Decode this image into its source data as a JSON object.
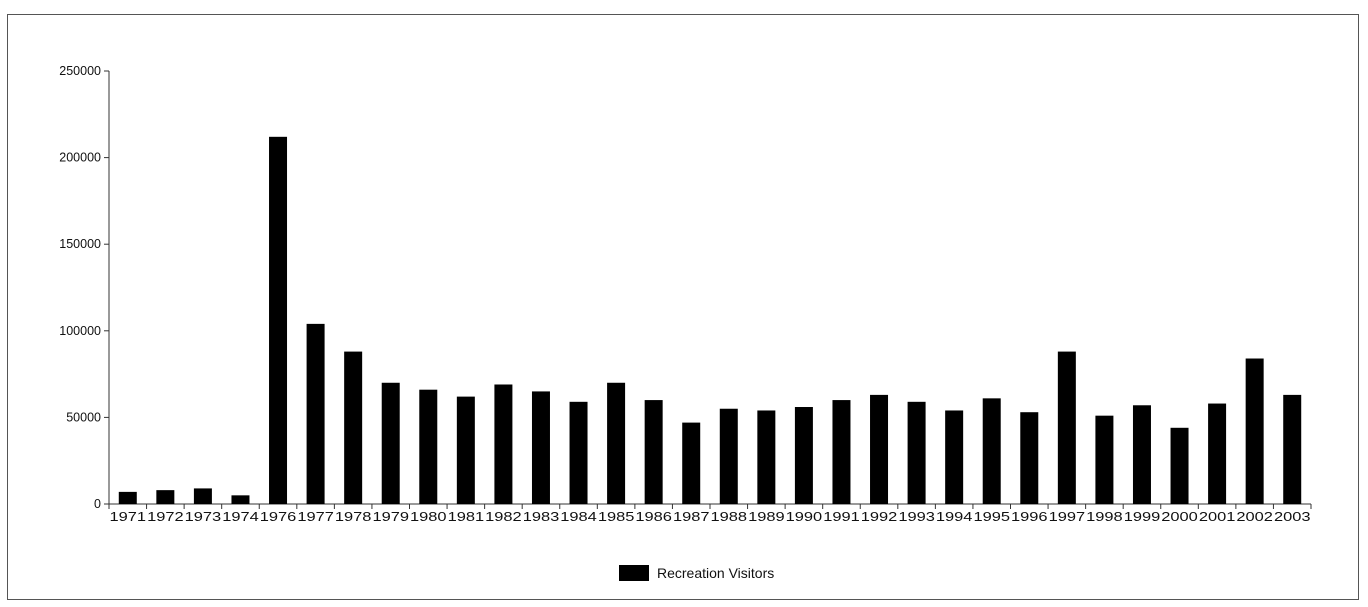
{
  "chart_data": {
    "type": "bar",
    "title": "",
    "xlabel": "",
    "ylabel": "",
    "ylim": [
      0,
      250000
    ],
    "yticks": [
      0,
      50000,
      100000,
      150000,
      200000,
      250000
    ],
    "grid": false,
    "legend_position": "bottom-center",
    "bar_color": "#000000",
    "categories": [
      "1971",
      "1972",
      "1973",
      "1974",
      "1976",
      "1977",
      "1978",
      "1979",
      "1980",
      "1981",
      "1982",
      "1983",
      "1984",
      "1985",
      "1986",
      "1987",
      "1988",
      "1989",
      "1990",
      "1991",
      "1992",
      "1993",
      "1994",
      "1995",
      "1996",
      "1997",
      "1998",
      "1999",
      "2000",
      "2001",
      "2002",
      "2003"
    ],
    "series": [
      {
        "name": "Recreation Visitors",
        "values": [
          7000,
          8000,
          9000,
          5000,
          212000,
          104000,
          88000,
          70000,
          66000,
          62000,
          69000,
          65000,
          59000,
          70000,
          60000,
          47000,
          55000,
          54000,
          56000,
          60000,
          63000,
          59000,
          54000,
          61000,
          53000,
          88000,
          51000,
          57000,
          44000,
          58000,
          84000,
          63000
        ]
      }
    ]
  }
}
